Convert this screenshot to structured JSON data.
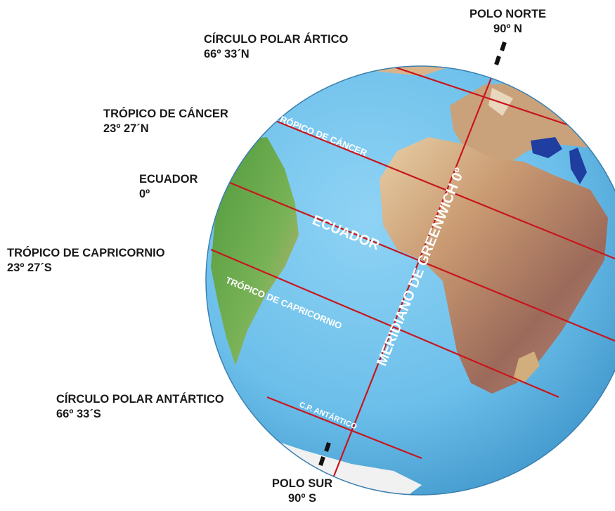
{
  "labels": {
    "north_pole": {
      "name": "POLO NORTE",
      "value": "90º N"
    },
    "arctic_circle": {
      "name": "CÍRCULO POLAR ÁRTICO",
      "value": "66º 33´N"
    },
    "tropic_cancer": {
      "name": "TRÓPICO DE CÁNCER",
      "value": "23º 27´N"
    },
    "equator": {
      "name": "ECUADOR",
      "value": "0º"
    },
    "tropic_capricorn": {
      "name": "TRÓPICO DE CAPRICORNIO",
      "value": "23º 27´S"
    },
    "antarctic_circle": {
      "name": "CÍRCULO POLAR ANTÁRTICO",
      "value": "66º 33´S"
    },
    "south_pole": {
      "name": "POLO SUR",
      "value": "90º S"
    }
  },
  "globe_text": {
    "tropic_cancer": "TRÓPICO DE CÁNCER",
    "equator": "ECUADOR",
    "tropic_capricorn": "TRÓPICO DE CAPRICORNIO",
    "antarctic": "C.P. ANTÁRTICO",
    "meridian": "MERIDIANO DE GREENWICH 0º"
  },
  "colors": {
    "ocean": "#6cbfea",
    "line": "#c8161d",
    "land_green": "#5a9e45",
    "land_sand": "#d9b48a",
    "axis": "#111111"
  }
}
